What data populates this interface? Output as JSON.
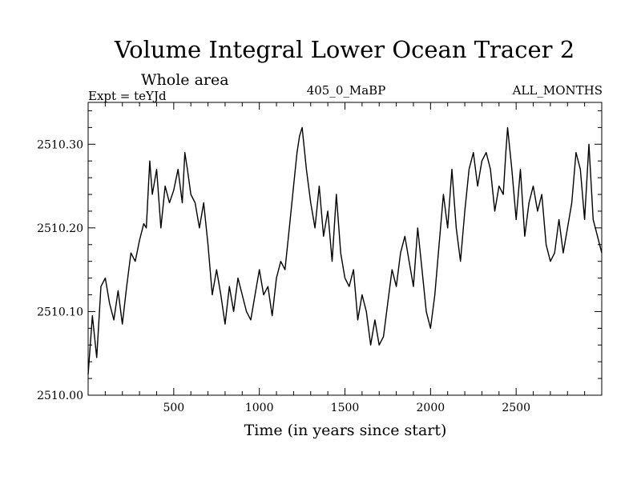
{
  "chart_data": {
    "type": "line",
    "title": "Volume Integral Lower Ocean Tracer 2",
    "subtitle": "Whole area",
    "expt_label": "Expt = teYJd",
    "run_label": "405_0_MaBP",
    "months_label": "ALL_MONTHS",
    "xlabel": "Time (in years since start)",
    "ylabel": "",
    "xlim": [
      0,
      3000
    ],
    "ylim": [
      2510.0,
      2510.35
    ],
    "x_ticks": [
      500,
      1000,
      1500,
      2000,
      2500
    ],
    "y_ticks": [
      2510.0,
      2510.1,
      2510.2,
      2510.3
    ],
    "y_tick_labels": [
      "2510.00",
      "2510.10",
      "2510.20",
      "2510.30"
    ],
    "series": [
      {
        "name": "Volume Integral Lower Ocean Tracer 2",
        "color": "#000000",
        "x": [
          0,
          25,
          50,
          75,
          100,
          125,
          150,
          175,
          200,
          225,
          250,
          275,
          300,
          325,
          340,
          360,
          375,
          400,
          425,
          450,
          475,
          500,
          525,
          550,
          565,
          580,
          600,
          625,
          650,
          675,
          700,
          725,
          750,
          775,
          800,
          825,
          850,
          875,
          900,
          925,
          950,
          975,
          1000,
          1025,
          1050,
          1075,
          1100,
          1125,
          1150,
          1175,
          1200,
          1220,
          1235,
          1250,
          1275,
          1300,
          1325,
          1350,
          1375,
          1400,
          1425,
          1450,
          1475,
          1500,
          1525,
          1550,
          1575,
          1600,
          1625,
          1650,
          1675,
          1700,
          1725,
          1750,
          1775,
          1800,
          1825,
          1850,
          1875,
          1900,
          1925,
          1950,
          1975,
          2000,
          2025,
          2050,
          2075,
          2100,
          2125,
          2150,
          2175,
          2200,
          2225,
          2250,
          2275,
          2300,
          2325,
          2350,
          2375,
          2400,
          2425,
          2440,
          2450,
          2475,
          2500,
          2525,
          2550,
          2575,
          2600,
          2625,
          2650,
          2675,
          2700,
          2725,
          2750,
          2775,
          2800,
          2825,
          2850,
          2875,
          2900,
          2925,
          2950,
          2975,
          3000
        ],
        "y": [
          2510.025,
          2510.095,
          2510.045,
          2510.13,
          2510.14,
          2510.11,
          2510.09,
          2510.125,
          2510.085,
          2510.13,
          2510.17,
          2510.16,
          2510.185,
          2510.205,
          2510.2,
          2510.28,
          2510.24,
          2510.27,
          2510.2,
          2510.25,
          2510.23,
          2510.245,
          2510.27,
          2510.23,
          2510.29,
          2510.27,
          2510.24,
          2510.23,
          2510.2,
          2510.23,
          2510.18,
          2510.12,
          2510.15,
          2510.12,
          2510.085,
          2510.13,
          2510.1,
          2510.14,
          2510.12,
          2510.1,
          2510.09,
          2510.12,
          2510.15,
          2510.12,
          2510.13,
          2510.095,
          2510.14,
          2510.16,
          2510.15,
          2510.2,
          2510.25,
          2510.29,
          2510.31,
          2510.32,
          2510.27,
          2510.23,
          2510.2,
          2510.25,
          2510.19,
          2510.22,
          2510.16,
          2510.24,
          2510.17,
          2510.14,
          2510.13,
          2510.15,
          2510.09,
          2510.12,
          2510.1,
          2510.06,
          2510.09,
          2510.06,
          2510.07,
          2510.11,
          2510.15,
          2510.13,
          2510.17,
          2510.19,
          2510.16,
          2510.13,
          2510.2,
          2510.15,
          2510.1,
          2510.08,
          2510.12,
          2510.18,
          2510.24,
          2510.2,
          2510.27,
          2510.2,
          2510.16,
          2510.22,
          2510.27,
          2510.29,
          2510.25,
          2510.28,
          2510.29,
          2510.27,
          2510.22,
          2510.25,
          2510.24,
          2510.29,
          2510.32,
          2510.27,
          2510.21,
          2510.27,
          2510.19,
          2510.23,
          2510.25,
          2510.22,
          2510.24,
          2510.18,
          2510.16,
          2510.17,
          2510.21,
          2510.17,
          2510.2,
          2510.23,
          2510.29,
          2510.27,
          2510.21,
          2510.3,
          2510.21,
          2510.19,
          2510.17
        ]
      }
    ]
  }
}
